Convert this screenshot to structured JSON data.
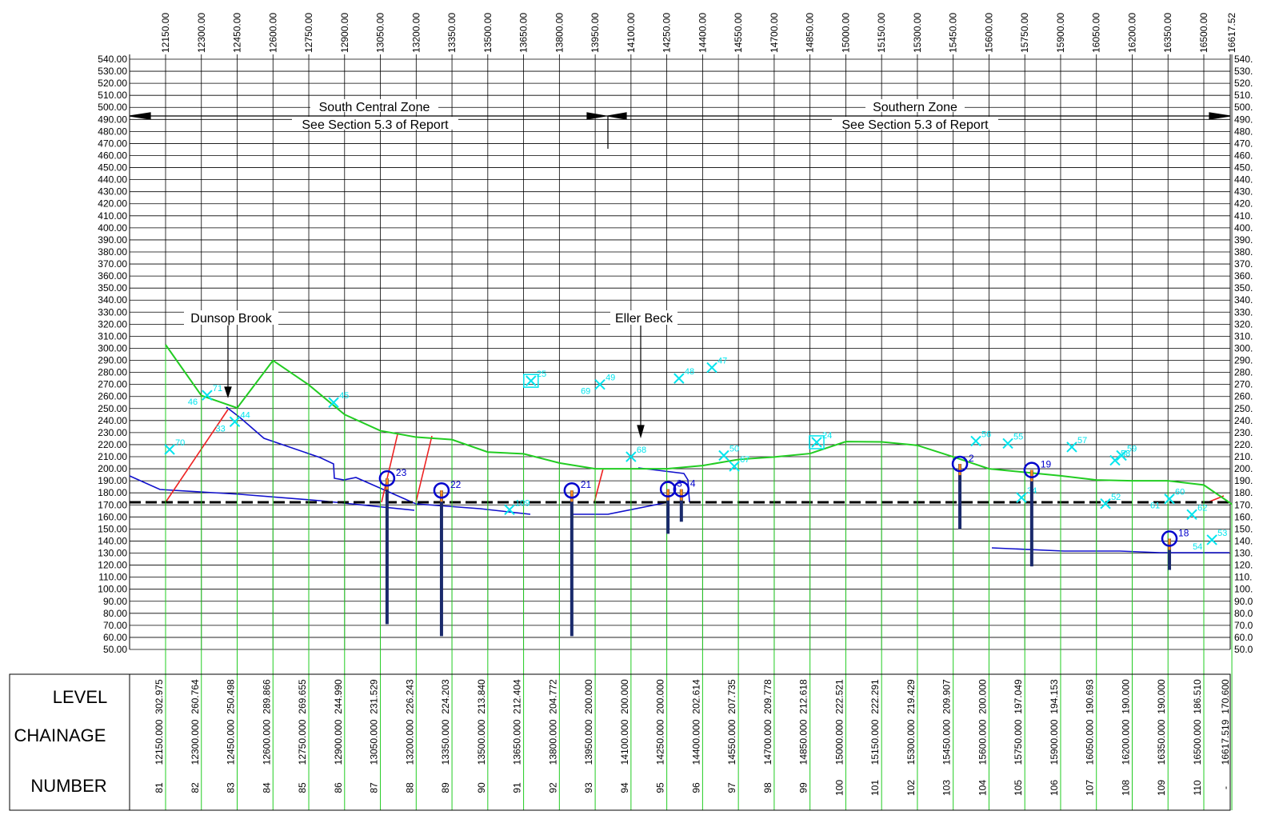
{
  "chart_data": {
    "type": "line",
    "xlim": [
      12000,
      16617.52
    ],
    "ylim": [
      50,
      540
    ],
    "xticks": [
      {
        "value": 12150,
        "label": "12150.00"
      },
      {
        "value": 12300,
        "label": "12300.00"
      },
      {
        "value": 12450,
        "label": "12450.00"
      },
      {
        "value": 12600,
        "label": "12600.00"
      },
      {
        "value": 12750,
        "label": "12750.00"
      },
      {
        "value": 12900,
        "label": "12900.00"
      },
      {
        "value": 13050,
        "label": "13050.00"
      },
      {
        "value": 13200,
        "label": "13200.00"
      },
      {
        "value": 13350,
        "label": "13350.00"
      },
      {
        "value": 13500,
        "label": "13500.00"
      },
      {
        "value": 13650,
        "label": "13650.00"
      },
      {
        "value": 13800,
        "label": "13800.00"
      },
      {
        "value": 13950,
        "label": "13950.00"
      },
      {
        "value": 14100,
        "label": "14100.00"
      },
      {
        "value": 14250,
        "label": "14250.00"
      },
      {
        "value": 14400,
        "label": "14400.00"
      },
      {
        "value": 14550,
        "label": "14550.00"
      },
      {
        "value": 14700,
        "label": "14700.00"
      },
      {
        "value": 14850,
        "label": "14850.00"
      },
      {
        "value": 15000,
        "label": "15000.00"
      },
      {
        "value": 15150,
        "label": "15150.00"
      },
      {
        "value": 15300,
        "label": "15300.00"
      },
      {
        "value": 15450,
        "label": "15450.00"
      },
      {
        "value": 15600,
        "label": "15600.00"
      },
      {
        "value": 15750,
        "label": "15750.00"
      },
      {
        "value": 15900,
        "label": "15900.00"
      },
      {
        "value": 16050,
        "label": "16050.00"
      },
      {
        "value": 16200,
        "label": "16200.00"
      },
      {
        "value": 16350,
        "label": "16350.00"
      },
      {
        "value": 16500,
        "label": "16500.00"
      },
      16617.52
    ],
    "yticks": [
      {
        "value": 540,
        "label": "540.00"
      },
      {
        "value": 530,
        "label": "530.00"
      },
      {
        "value": 520,
        "label": "520.00"
      },
      {
        "value": 510,
        "label": "510.00"
      },
      {
        "value": 500,
        "label": "500.00"
      },
      {
        "value": 490,
        "label": "490.00"
      },
      {
        "value": 480,
        "label": "480.00"
      },
      {
        "value": 470,
        "label": "470.00"
      },
      {
        "value": 460,
        "label": "460.00"
      },
      {
        "value": 450,
        "label": "450.00"
      },
      {
        "value": 440,
        "label": "440.00"
      },
      {
        "value": 430,
        "label": "430.00"
      },
      {
        "value": 420,
        "label": "420.00"
      },
      {
        "value": 410,
        "label": "410.00"
      },
      {
        "value": 400,
        "label": "400.00"
      },
      {
        "value": 390,
        "label": "390.00"
      },
      {
        "value": 380,
        "label": "380.00"
      },
      {
        "value": 370,
        "label": "370.00"
      },
      {
        "value": 360,
        "label": "360.00"
      },
      {
        "value": 350,
        "label": "350.00"
      },
      {
        "value": 340,
        "label": "340.00"
      },
      {
        "value": 330,
        "label": "330.00"
      },
      {
        "value": 320,
        "label": "320.00"
      },
      {
        "value": 310,
        "label": "310.00"
      },
      {
        "value": 300,
        "label": "300.00"
      },
      {
        "value": 290,
        "label": "290.00"
      },
      {
        "value": 280,
        "label": "280.00"
      },
      {
        "value": 270,
        "label": "270.00"
      },
      {
        "value": 260,
        "label": "260.00"
      },
      {
        "value": 250,
        "label": "250.00"
      },
      {
        "value": 240,
        "label": "240.00"
      },
      {
        "value": 230,
        "label": "230.00"
      },
      {
        "value": 220,
        "label": "220.00"
      },
      {
        "value": 210,
        "label": "210.00"
      },
      {
        "value": 200,
        "label": "200.00"
      },
      {
        "value": 190,
        "label": "190.00"
      },
      {
        "value": 180,
        "label": "180.00"
      },
      {
        "value": 170,
        "label": "170.00"
      },
      {
        "value": 160,
        "label": "160.00"
      },
      {
        "value": 150,
        "label": "150.00"
      },
      {
        "value": 140,
        "label": "140.00"
      },
      {
        "value": 130,
        "label": "130.00"
      },
      {
        "value": 120,
        "label": "120.00"
      },
      {
        "value": 110,
        "label": "110.00"
      },
      {
        "value": 100,
        "label": "100.00"
      },
      {
        "value": 90,
        "label": "90.00"
      },
      {
        "value": 80,
        "label": "80.00"
      },
      {
        "value": 70,
        "label": "70.00"
      },
      {
        "value": 60,
        "label": "60.00"
      },
      {
        "value": 50,
        "label": "50.00"
      }
    ],
    "grid": true,
    "ground_color": "#22cc22",
    "annotations": [
      "South Central Zone",
      "See Section 5.3 of Report",
      "Southern Zone",
      "See Section 5.3 of Report",
      "Dunsop Brook",
      "Eller Beck"
    ],
    "boreholes": [
      {
        "label": "23",
        "x": 13078,
        "top": 192,
        "bottom": 71
      },
      {
        "label": "22",
        "x": 13306,
        "top": 182,
        "bottom": 61
      },
      {
        "label": "21",
        "x": 13852,
        "top": 182,
        "bottom": 61
      },
      {
        "label": "3",
        "x": 14255,
        "top": 183,
        "bottom": 146
      },
      {
        "label": "4",
        "x": 14311,
        "top": 183,
        "bottom": 156
      },
      {
        "label": "2",
        "x": 15478,
        "top": 204,
        "bottom": 150
      },
      {
        "label": "19",
        "x": 15779,
        "top": 199,
        "bottom": 119
      },
      {
        "label": "18",
        "x": 16356,
        "top": 142,
        "bottom": 116
      }
    ],
    "points": [
      {
        "labels": [
          "70"
        ],
        "x": 12167,
        "y": 216
      },
      {
        "labels": [
          "71",
          "46"
        ],
        "x": 12324,
        "y": 261
      },
      {
        "labels": [
          "44",
          "33"
        ],
        "x": 12440,
        "y": 239
      },
      {
        "labels": [
          "45"
        ],
        "x": 12854,
        "y": 255
      },
      {
        "labels": [
          "25"
        ],
        "x": 13681,
        "y": 273,
        "symbol": "box"
      },
      {
        "labels": [
          "49",
          "69"
        ],
        "x": 13970,
        "y": 270
      },
      {
        "labels": [
          "48"
        ],
        "x": 14301,
        "y": 275
      },
      {
        "labels": [
          "47"
        ],
        "x": 14439,
        "y": 284
      },
      {
        "labels": [
          "68"
        ],
        "x": 14100,
        "y": 210
      },
      {
        "labels": [
          "50"
        ],
        "x": 14489,
        "y": 211
      },
      {
        "labels": [
          "67"
        ],
        "x": 14533,
        "y": 202
      },
      {
        "labels": [
          "24"
        ],
        "x": 14878,
        "y": 222,
        "symbol": "box"
      },
      {
        "labels": [
          "56"
        ],
        "x": 15545,
        "y": 223
      },
      {
        "labels": [
          "55"
        ],
        "x": 15679,
        "y": 221
      },
      {
        "labels": [
          "57"
        ],
        "x": 15947,
        "y": 218
      },
      {
        "labels": [
          "59"
        ],
        "x": 16155,
        "y": 211
      },
      {
        "labels": [
          "58"
        ],
        "x": 16128,
        "y": 207
      },
      {
        "labels": [
          "34"
        ],
        "x": 15736,
        "y": 176
      },
      {
        "labels": [
          "52"
        ],
        "x": 16088,
        "y": 171
      },
      {
        "labels": [
          "60",
          "61"
        ],
        "x": 16356,
        "y": 175
      },
      {
        "labels": [
          "62"
        ],
        "x": 16450,
        "y": 162
      },
      {
        "labels": [
          "53",
          "54"
        ],
        "x": 16534,
        "y": 141
      },
      {
        "labels": [
          "109"
        ],
        "x": 13591,
        "y": 166
      }
    ],
    "table": {
      "row_labels": [
        "LEVEL",
        "CHAINAGE",
        "NUMBER"
      ],
      "level": [
        {
          "value": 302.975,
          "label": "302.975"
        },
        {
          "value": 260.764,
          "label": "260.764"
        },
        {
          "value": 250.498,
          "label": "250.498"
        },
        {
          "value": 289.866,
          "label": "289.866"
        },
        {
          "value": 269.655,
          "label": "269.655"
        },
        {
          "value": 244.99,
          "label": "244.990"
        },
        {
          "value": 231.529,
          "label": "231.529"
        },
        {
          "value": 226.243,
          "label": "226.243"
        },
        {
          "value": 224.203,
          "label": "224.203"
        },
        {
          "value": 213.84,
          "label": "213.840"
        },
        {
          "value": 212.404,
          "label": "212.404"
        },
        {
          "value": 204.772,
          "label": "204.772"
        },
        {
          "value": 200,
          "label": "200.000"
        },
        {
          "value": 200,
          "label": "200.000"
        },
        {
          "value": 200,
          "label": "200.000"
        },
        {
          "value": 202.614,
          "label": "202.614"
        },
        {
          "value": 207.735,
          "label": "207.735"
        },
        {
          "value": 209.778,
          "label": "209.778"
        },
        {
          "value": 212.618,
          "label": "212.618"
        },
        {
          "value": 222.521,
          "label": "222.521"
        },
        {
          "value": 222.291,
          "label": "222.291"
        },
        {
          "value": 219.429,
          "label": "219.429"
        },
        {
          "value": 209.907,
          "label": "209.907"
        },
        {
          "value": 200,
          "label": "200.000"
        },
        {
          "value": 197.049,
          "label": "197.049"
        },
        {
          "value": 194.153,
          "label": "194.153"
        },
        {
          "value": 190.693,
          "label": "190.693"
        },
        {
          "value": 190,
          "label": "190.000"
        },
        {
          "value": 190,
          "label": "190.000"
        },
        {
          "value": 186.51,
          "label": "186.510"
        },
        {
          "value": 170.6,
          "label": "170.600"
        }
      ],
      "chainage": [
        {
          "value": 12150,
          "label": "12150.000"
        },
        {
          "value": 12300,
          "label": "12300.000"
        },
        {
          "value": 12450,
          "label": "12450.000"
        },
        {
          "value": 12600,
          "label": "12600.000"
        },
        {
          "value": 12750,
          "label": "12750.000"
        },
        {
          "value": 12900,
          "label": "12900.000"
        },
        {
          "value": 13050,
          "label": "13050.000"
        },
        {
          "value": 13200,
          "label": "13200.000"
        },
        {
          "value": 13350,
          "label": "13350.000"
        },
        {
          "value": 13500,
          "label": "13500.000"
        },
        {
          "value": 13650,
          "label": "13650.000"
        },
        {
          "value": 13800,
          "label": "13800.000"
        },
        {
          "value": 13950,
          "label": "13950.000"
        },
        {
          "value": 14100,
          "label": "14100.000"
        },
        {
          "value": 14250,
          "label": "14250.000"
        },
        {
          "value": 14400,
          "label": "14400.000"
        },
        {
          "value": 14550,
          "label": "14550.000"
        },
        {
          "value": 14700,
          "label": "14700.000"
        },
        {
          "value": 14850,
          "label": "14850.000"
        },
        {
          "value": 15000,
          "label": "15000.000"
        },
        {
          "value": 15150,
          "label": "15150.000"
        },
        {
          "value": 15300,
          "label": "15300.000"
        },
        {
          "value": 15450,
          "label": "15450.000"
        },
        {
          "value": 15600,
          "label": "15600.000"
        },
        {
          "value": 15750,
          "label": "15750.000"
        },
        {
          "value": 15900,
          "label": "15900.000"
        },
        {
          "value": 16050,
          "label": "16050.000"
        },
        {
          "value": 16200,
          "label": "16200.000"
        },
        {
          "value": 16350,
          "label": "16350.000"
        },
        {
          "value": 16500,
          "label": "16500.000"
        },
        {
          "value": 16617.519,
          "label": "16617.519"
        }
      ],
      "number": [
        "81",
        "82",
        "83",
        "84",
        "85",
        "86",
        "87",
        "88",
        "89",
        "90",
        "91",
        "92",
        "93",
        "94",
        "95",
        "96",
        "97",
        "98",
        "99",
        "100",
        "101",
        "102",
        "103",
        "104",
        "105",
        "106",
        "107",
        "108",
        "109",
        "110",
        "-"
      ]
    }
  }
}
